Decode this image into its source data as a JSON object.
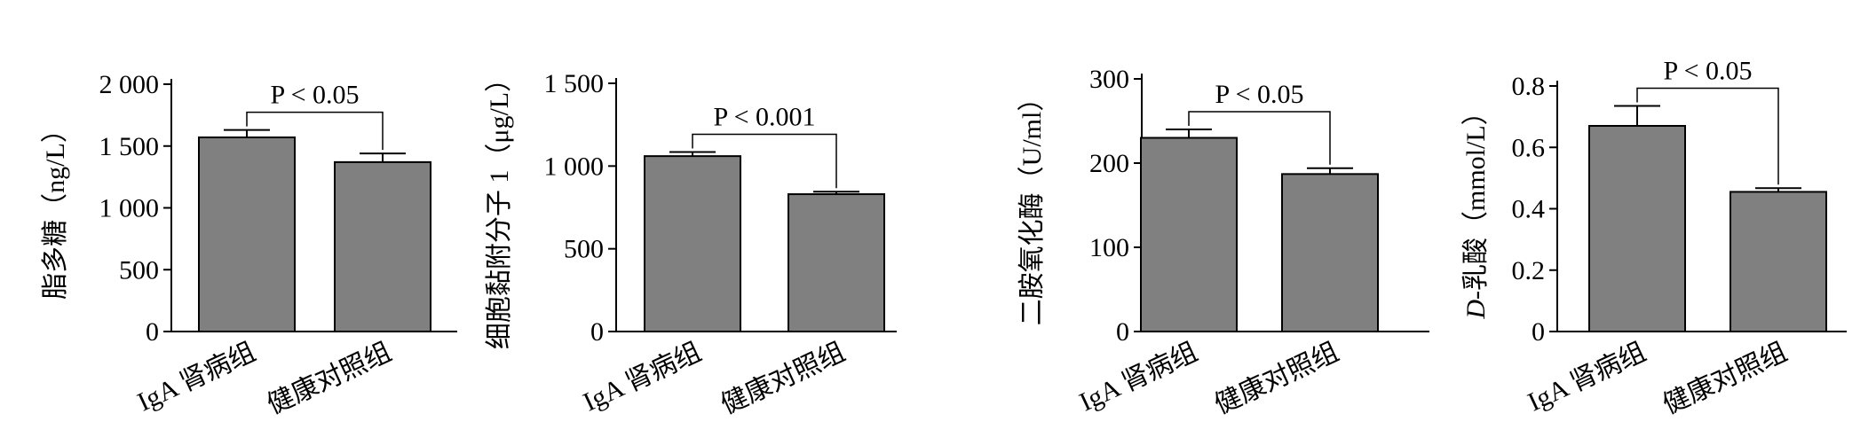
{
  "colors": {
    "bar": "#808080",
    "axis": "#000000",
    "background": "#ffffff"
  },
  "chart_data": [
    {
      "type": "bar",
      "ylabel": "脂多糖（ng/L）",
      "categories": [
        "IgA 肾病组",
        "健康对照组"
      ],
      "values": [
        1570,
        1370
      ],
      "errors": [
        60,
        70
      ],
      "ylim": [
        0,
        2000
      ],
      "yticks": [
        0,
        500,
        1000,
        1500,
        2000
      ],
      "ytick_labels": [
        "0",
        "500",
        "1 000",
        "1 500",
        "2 000"
      ],
      "annotation": "P < 0.05",
      "grid": false
    },
    {
      "type": "bar",
      "ylabel": "细胞黏附分子 1（μg/L）",
      "categories": [
        "IgA 肾病组",
        "健康对照组"
      ],
      "values": [
        1060,
        830
      ],
      "errors": [
        25,
        15
      ],
      "ylim": [
        0,
        1500
      ],
      "yticks": [
        0,
        500,
        1000,
        1500
      ],
      "ytick_labels": [
        "0",
        "500",
        "1 000",
        "1 500"
      ],
      "annotation": "P < 0.001",
      "grid": false
    },
    {
      "type": "bar",
      "ylabel": "二胺氧化酶（U/ml）",
      "categories": [
        "IgA 肾病组",
        "健康对照组"
      ],
      "values": [
        230,
        187
      ],
      "errors": [
        10,
        7
      ],
      "ylim": [
        0,
        300
      ],
      "yticks": [
        0,
        100,
        200,
        300
      ],
      "ytick_labels": [
        "0",
        "100",
        "200",
        "300"
      ],
      "annotation": "P < 0.05",
      "grid": false
    },
    {
      "type": "bar",
      "ylabel_italic": "D",
      "ylabel": "-乳酸（mmol/L）",
      "categories": [
        "IgA 肾病组",
        "健康对照组"
      ],
      "values": [
        0.67,
        0.455
      ],
      "errors": [
        0.065,
        0.012
      ],
      "ylim": [
        0,
        0.8
      ],
      "yticks": [
        0,
        0.2,
        0.4,
        0.6,
        0.8
      ],
      "ytick_labels": [
        "0",
        "0.2",
        "0.4",
        "0.6",
        "0.8"
      ],
      "annotation": "P < 0.05",
      "grid": false
    }
  ]
}
